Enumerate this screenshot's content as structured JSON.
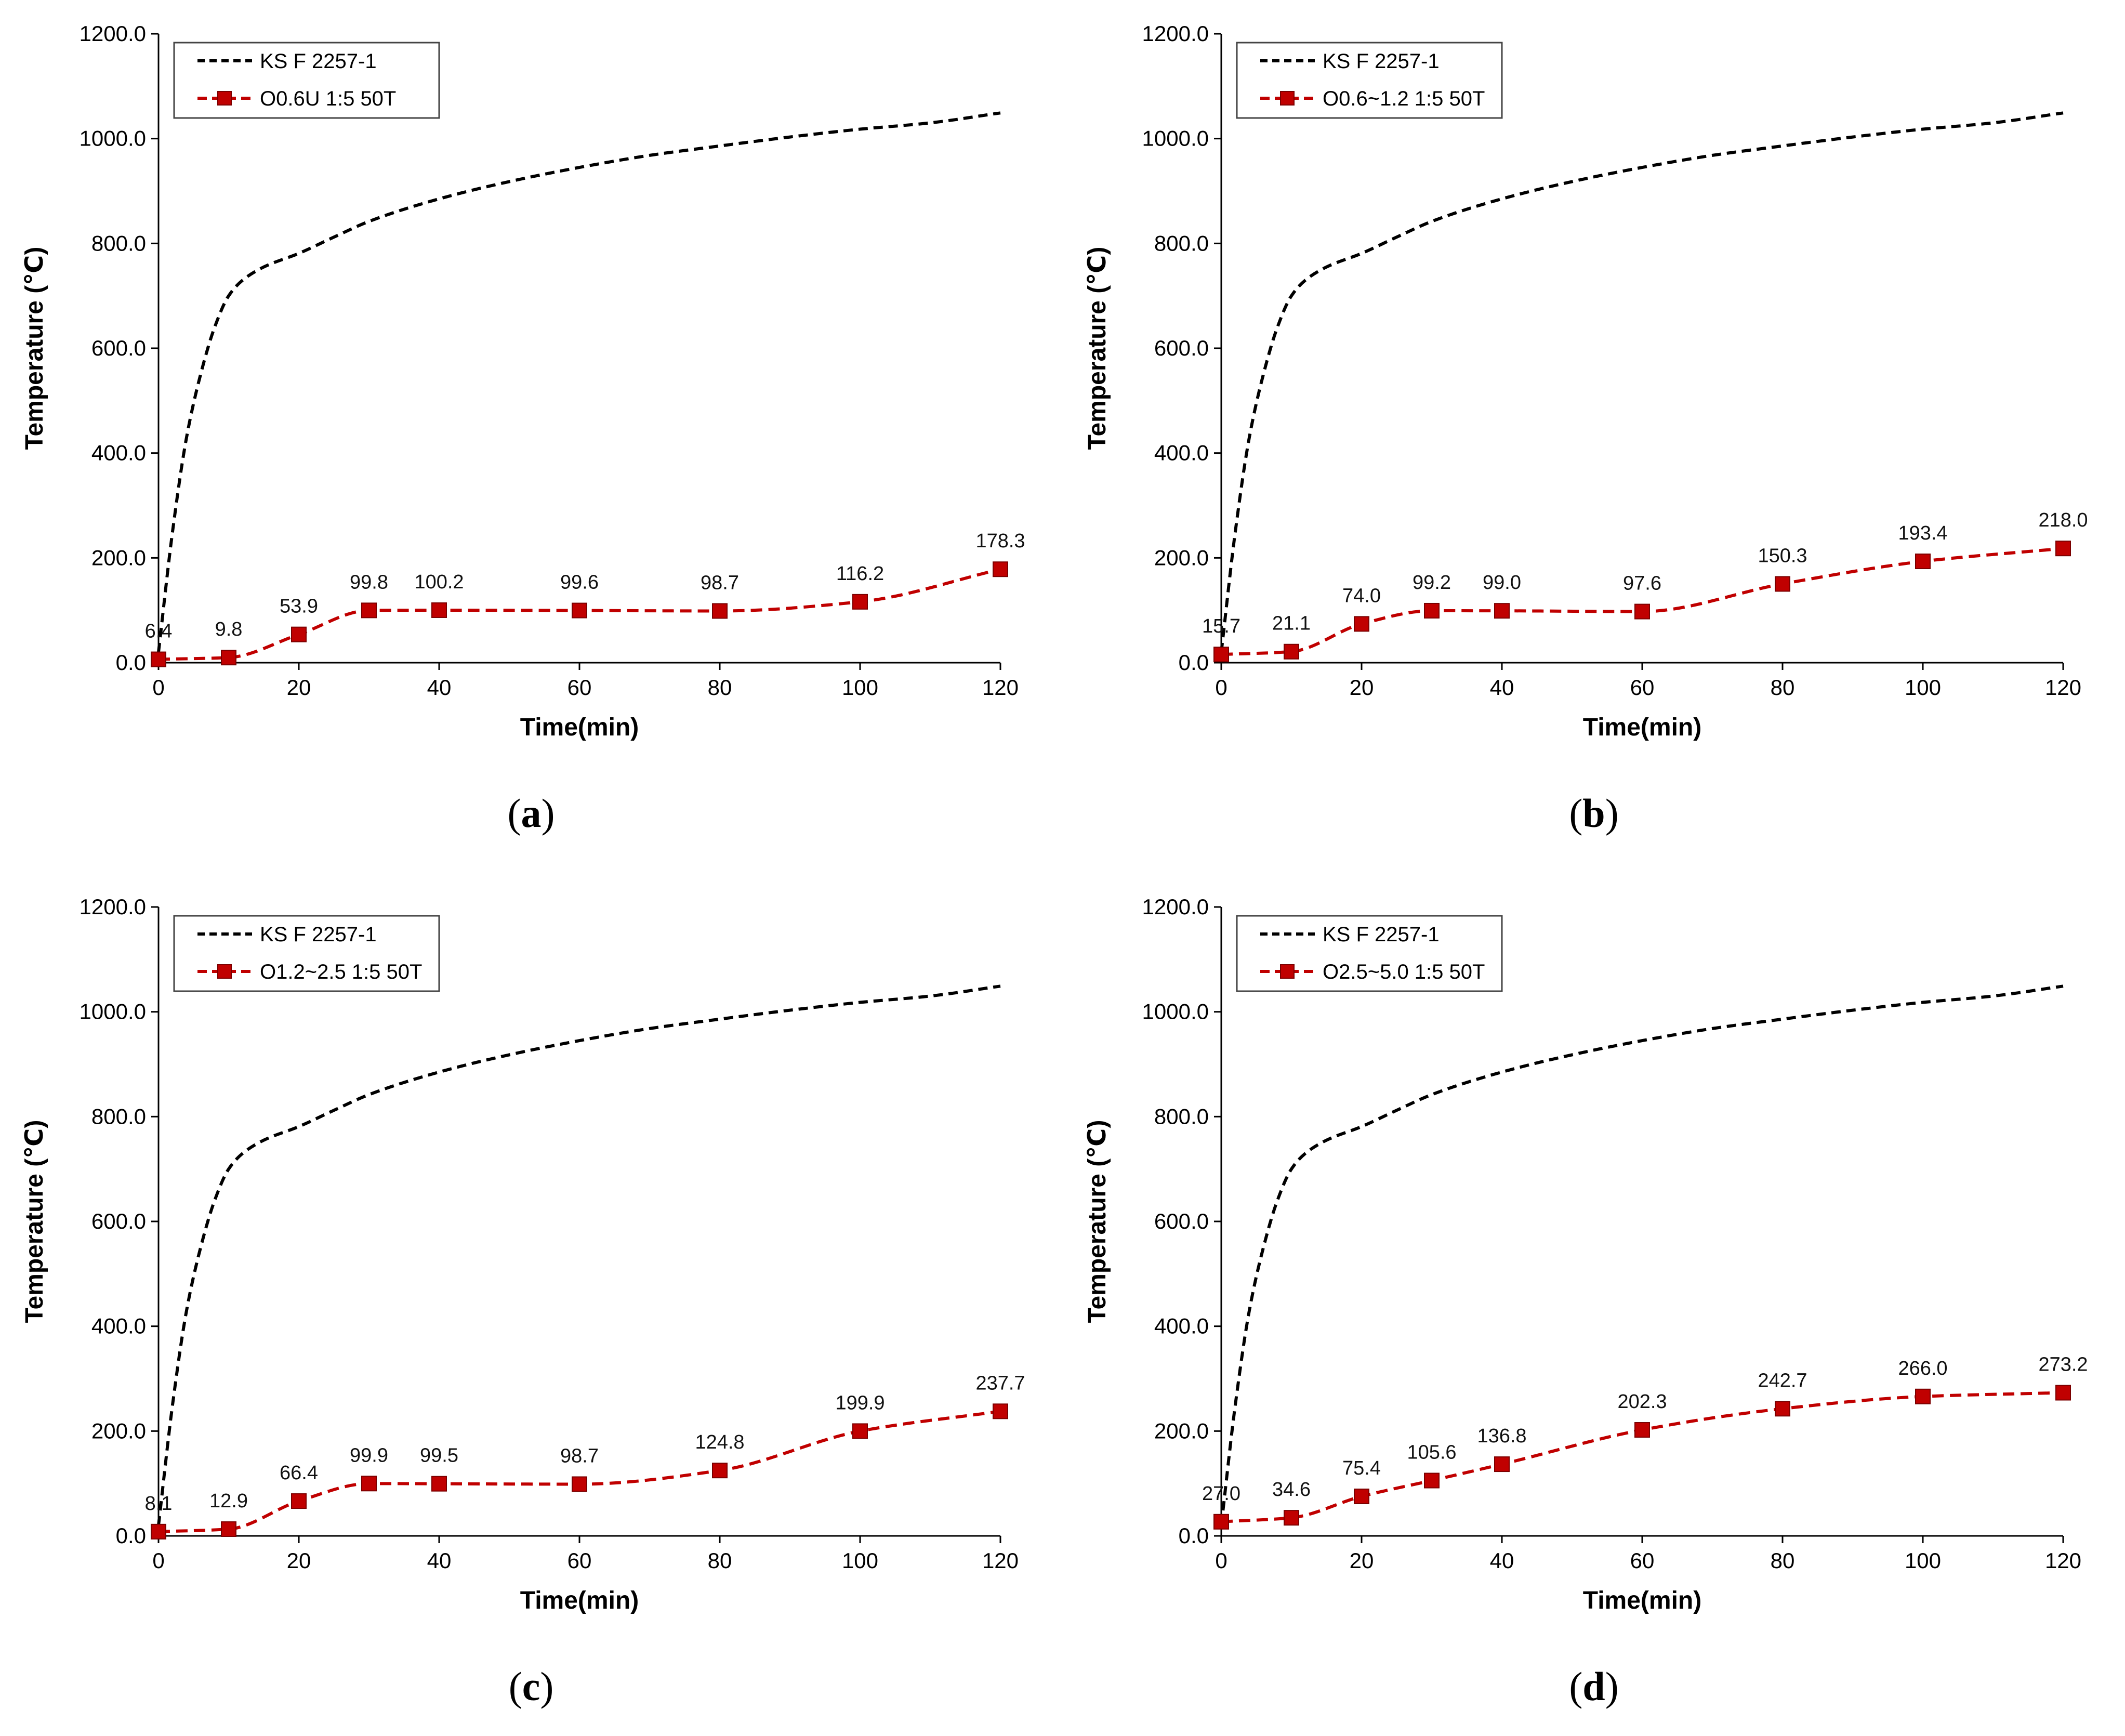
{
  "colors": {
    "standard": "#000000",
    "specimen": "#c00000",
    "marker_edge": "#7a0000"
  },
  "chart_data": [
    {
      "id": "a",
      "type": "line",
      "caption_letter": "a",
      "xlabel": "Time(min)",
      "ylabel": "Temperature (℃)",
      "xlim": [
        0,
        120
      ],
      "ylim": [
        0,
        1200
      ],
      "xticks": [
        "0",
        "20",
        "40",
        "60",
        "80",
        "100",
        "120"
      ],
      "yticks": [
        "0.0",
        "200.0",
        "400.0",
        "600.0",
        "800.0",
        "1000.0",
        "1200.0"
      ],
      "legend_position": "top-left",
      "series": [
        {
          "name": "KS F 2257-1",
          "style": "dashed",
          "x": [
            0,
            2,
            4,
            6,
            8,
            10,
            12,
            15,
            20,
            25,
            30,
            40,
            50,
            60,
            70,
            80,
            90,
            100,
            110,
            120
          ],
          "y": [
            20,
            250,
            430,
            550,
            640,
            700,
            730,
            755,
            781,
            812,
            842,
            885,
            918,
            945,
            968,
            986,
            1003,
            1018,
            1030,
            1049
          ]
        },
        {
          "name": "O0.6U 1:5 50T",
          "style": "dashed-marker",
          "x": [
            0,
            10,
            20,
            30,
            40,
            60,
            80,
            100,
            120
          ],
          "y": [
            6.4,
            9.8,
            53.9,
            99.8,
            100.2,
            99.6,
            98.7,
            116.2,
            178.3
          ],
          "labels": [
            "6.4",
            "9.8",
            "53.9",
            "99.8",
            "100.2",
            "99.6",
            "98.7",
            "116.2",
            "178.3"
          ]
        }
      ]
    },
    {
      "id": "b",
      "type": "line",
      "caption_letter": "b",
      "xlabel": "Time(min)",
      "ylabel": "Temperature (℃)",
      "xlim": [
        0,
        120
      ],
      "ylim": [
        0,
        1200
      ],
      "xticks": [
        "0",
        "20",
        "40",
        "60",
        "80",
        "100",
        "120"
      ],
      "yticks": [
        "0.0",
        "200.0",
        "400.0",
        "600.0",
        "800.0",
        "1000.0",
        "1200.0"
      ],
      "legend_position": "top-left",
      "series": [
        {
          "name": "KS F 2257-1",
          "style": "dashed",
          "x": [
            0,
            2,
            4,
            6,
            8,
            10,
            12,
            15,
            20,
            25,
            30,
            40,
            50,
            60,
            70,
            80,
            90,
            100,
            110,
            120
          ],
          "y": [
            20,
            250,
            430,
            550,
            640,
            700,
            730,
            755,
            781,
            812,
            842,
            885,
            918,
            945,
            968,
            986,
            1003,
            1018,
            1030,
            1049
          ]
        },
        {
          "name": "O0.6~1.2 1:5 50T",
          "style": "dashed-marker",
          "x": [
            0,
            10,
            20,
            30,
            40,
            60,
            80,
            100,
            120
          ],
          "y": [
            15.7,
            21.1,
            74.0,
            99.2,
            99.0,
            97.6,
            150.3,
            193.4,
            218.0
          ],
          "labels": [
            "15.7",
            "21.1",
            "74.0",
            "99.2",
            "99.0",
            "97.6",
            "150.3",
            "193.4",
            "218.0"
          ]
        }
      ]
    },
    {
      "id": "c",
      "type": "line",
      "caption_letter": "c",
      "xlabel": "Time(min)",
      "ylabel": "Temperature (℃)",
      "xlim": [
        0,
        120
      ],
      "ylim": [
        0,
        1200
      ],
      "xticks": [
        "0",
        "20",
        "40",
        "60",
        "80",
        "100",
        "120"
      ],
      "yticks": [
        "0.0",
        "200.0",
        "400.0",
        "600.0",
        "800.0",
        "1000.0",
        "1200.0"
      ],
      "legend_position": "top-left",
      "series": [
        {
          "name": "KS F 2257-1",
          "style": "dashed",
          "x": [
            0,
            2,
            4,
            6,
            8,
            10,
            12,
            15,
            20,
            25,
            30,
            40,
            50,
            60,
            70,
            80,
            90,
            100,
            110,
            120
          ],
          "y": [
            20,
            250,
            430,
            550,
            640,
            700,
            730,
            755,
            781,
            812,
            842,
            885,
            918,
            945,
            968,
            986,
            1003,
            1018,
            1030,
            1049
          ]
        },
        {
          "name": "O1.2~2.5 1:5 50T",
          "style": "dashed-marker",
          "x": [
            0,
            10,
            20,
            30,
            40,
            60,
            80,
            100,
            120
          ],
          "y": [
            8.1,
            12.9,
            66.4,
            99.9,
            99.5,
            98.7,
            124.8,
            199.9,
            237.7
          ],
          "labels": [
            "8.1",
            "12.9",
            "66.4",
            "99.9",
            "99.5",
            "98.7",
            "124.8",
            "199.9",
            "237.7"
          ]
        }
      ]
    },
    {
      "id": "d",
      "type": "line",
      "caption_letter": "d",
      "xlabel": "Time(min)",
      "ylabel": "Temperature (℃)",
      "xlim": [
        0,
        120
      ],
      "ylim": [
        0,
        1200
      ],
      "xticks": [
        "0",
        "20",
        "40",
        "60",
        "80",
        "100",
        "120"
      ],
      "yticks": [
        "0.0",
        "200.0",
        "400.0",
        "600.0",
        "800.0",
        "1000.0",
        "1200.0"
      ],
      "legend_position": "top-left",
      "series": [
        {
          "name": "KS F 2257-1",
          "style": "dashed",
          "x": [
            0,
            2,
            4,
            6,
            8,
            10,
            12,
            15,
            20,
            25,
            30,
            40,
            50,
            60,
            70,
            80,
            90,
            100,
            110,
            120
          ],
          "y": [
            20,
            250,
            430,
            550,
            640,
            700,
            730,
            755,
            781,
            812,
            842,
            885,
            918,
            945,
            968,
            986,
            1003,
            1018,
            1030,
            1049
          ]
        },
        {
          "name": "O2.5~5.0 1:5 50T",
          "style": "dashed-marker",
          "x": [
            0,
            10,
            20,
            30,
            40,
            60,
            80,
            100,
            120
          ],
          "y": [
            27.0,
            34.6,
            75.4,
            105.6,
            136.8,
            202.3,
            242.7,
            266.0,
            273.2
          ],
          "labels": [
            "27.0",
            "34.6",
            "75.4",
            "105.6",
            "136.8",
            "202.3",
            "242.7",
            "266.0",
            "273.2"
          ]
        }
      ]
    }
  ]
}
